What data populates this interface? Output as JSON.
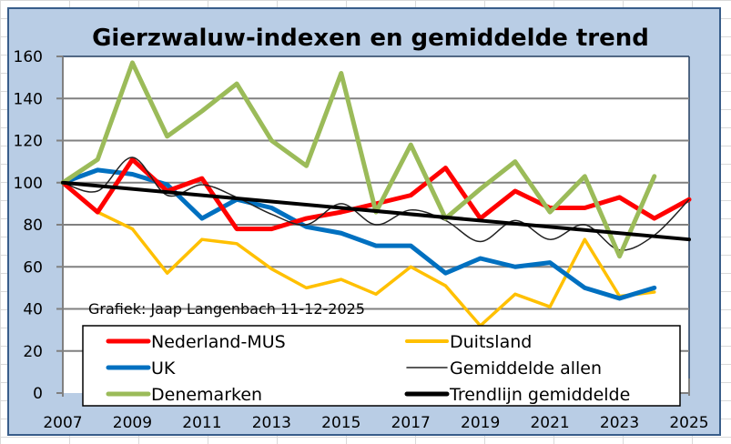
{
  "chart_data": {
    "type": "line",
    "title": "Gierzwaluw-indexen en gemiddelde trend",
    "xlabel": "",
    "ylabel": "",
    "xlim": [
      2007,
      2025
    ],
    "ylim": [
      0,
      160
    ],
    "x_ticks": [
      "2007",
      "2009",
      "2011",
      "2013",
      "2015",
      "2017",
      "2019",
      "2021",
      "2023",
      "2025"
    ],
    "y_ticks": [
      "0",
      "20",
      "40",
      "60",
      "80",
      "100",
      "120",
      "140",
      "160"
    ],
    "grid": "horizontal",
    "legend_placement": "bottom",
    "annotation": "Grafiek: Jaap Langenbach  11-12-2025",
    "series": [
      {
        "name": "Nederland-MUS",
        "color": "#FF0000",
        "style": "thick",
        "x": [
          2007,
          2008,
          2009,
          2010,
          2011,
          2012,
          2013,
          2014,
          2015,
          2016,
          2017,
          2018,
          2019,
          2020,
          2021,
          2022,
          2023,
          2024,
          2025
        ],
        "values": [
          100,
          86,
          111,
          96,
          102,
          78,
          78,
          83,
          86,
          90,
          94,
          107,
          83,
          96,
          88,
          88,
          93,
          83,
          92
        ]
      },
      {
        "name": "Duitsland",
        "color": "#FFC000",
        "style": "medium",
        "x": [
          2007,
          2008,
          2009,
          2010,
          2011,
          2012,
          2013,
          2014,
          2015,
          2016,
          2017,
          2018,
          2019,
          2020,
          2021,
          2022,
          2023,
          2024
        ],
        "values": [
          100,
          86,
          78,
          57,
          73,
          71,
          59,
          50,
          54,
          47,
          60,
          51,
          32,
          47,
          41,
          73,
          46,
          48
        ]
      },
      {
        "name": "UK",
        "color": "#0070C0",
        "style": "thick",
        "x": [
          2007,
          2008,
          2009,
          2010,
          2011,
          2012,
          2013,
          2014,
          2015,
          2016,
          2017,
          2018,
          2019,
          2020,
          2021,
          2022,
          2023,
          2024
        ],
        "values": [
          100,
          106,
          104,
          99,
          83,
          92,
          88,
          79,
          76,
          70,
          70,
          57,
          64,
          60,
          62,
          50,
          45,
          50
        ]
      },
      {
        "name": "Gemiddelde allen",
        "color": "#222222",
        "style": "thin-smooth",
        "x": [
          2007,
          2008,
          2009,
          2010,
          2011,
          2012,
          2013,
          2014,
          2015,
          2016,
          2017,
          2018,
          2019,
          2020,
          2021,
          2022,
          2023,
          2024,
          2025
        ],
        "values": [
          100,
          96,
          112,
          94,
          99,
          93,
          85,
          80,
          90,
          80,
          87,
          82,
          72,
          82,
          73,
          80,
          68,
          75,
          92
        ]
      },
      {
        "name": "Denemarken",
        "color": "#9BBB59",
        "style": "thick",
        "x": [
          2007,
          2008,
          2009,
          2010,
          2011,
          2012,
          2013,
          2014,
          2015,
          2016,
          2017,
          2018,
          2019,
          2020,
          2021,
          2022,
          2023,
          2024
        ],
        "values": [
          100,
          111,
          157,
          122,
          134,
          147,
          120,
          108,
          152,
          86,
          118,
          83,
          97,
          110,
          86,
          103,
          65,
          103
        ]
      },
      {
        "name": "Trendlijn gemiddelde",
        "color": "#000000",
        "style": "thick-trend",
        "x": [
          2007,
          2025
        ],
        "values": [
          100,
          73
        ]
      }
    ]
  }
}
